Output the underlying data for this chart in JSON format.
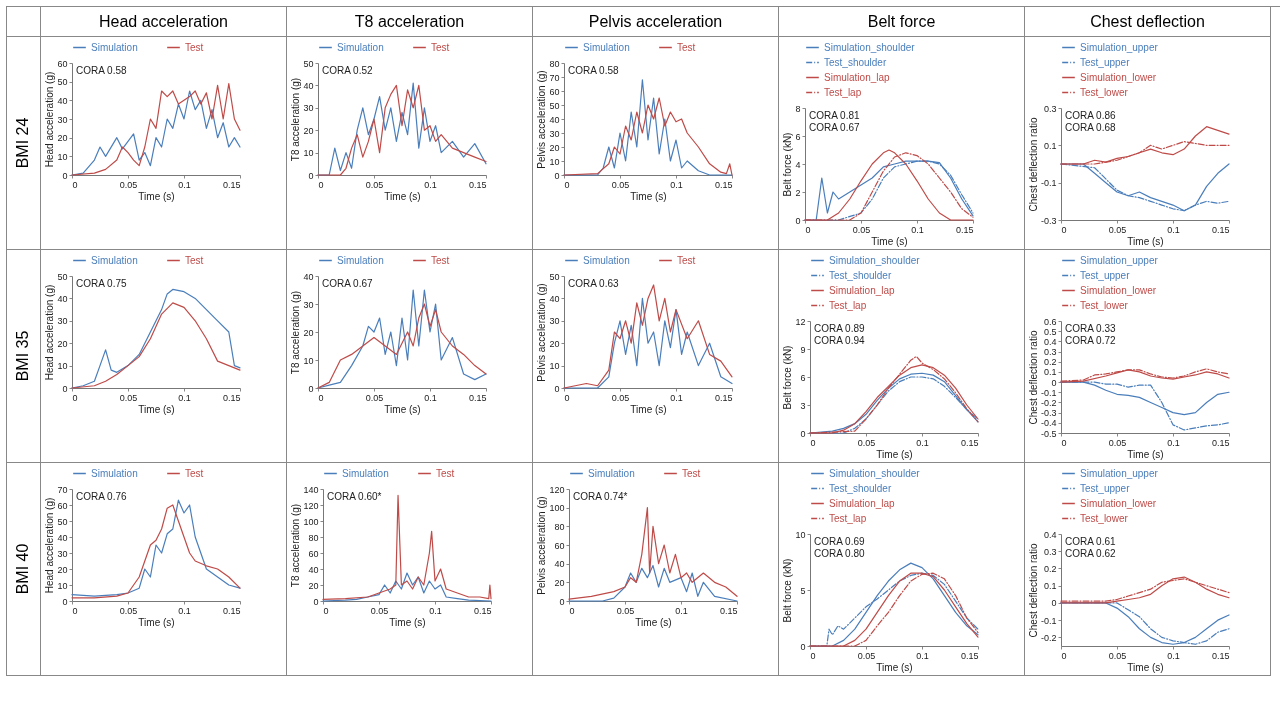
{
  "chart_data": [
    {
      "type": "line",
      "title": "Head acceleration",
      "subtitle": "BMI 24",
      "xlabel": "Time (s)",
      "ylabel": "Head acceleration (g)",
      "xlim": [
        0,
        0.15
      ],
      "xticks": [
        0,
        0.05,
        0.1,
        0.15
      ],
      "ylim": [
        0,
        60
      ],
      "yticks": [
        0,
        10,
        20,
        30,
        40,
        50,
        60
      ],
      "legend": "top",
      "annotations": [
        "CORA 0.58"
      ],
      "series": [
        {
          "name": "Simulation",
          "color": "#4a7ebb",
          "x": [
            0,
            0.01,
            0.02,
            0.025,
            0.03,
            0.04,
            0.045,
            0.05,
            0.055,
            0.06,
            0.065,
            0.07,
            0.075,
            0.08,
            0.085,
            0.09,
            0.095,
            0.1,
            0.105,
            0.11,
            0.115,
            0.12,
            0.125,
            0.13,
            0.135,
            0.14,
            0.145,
            0.15
          ],
          "values": [
            0,
            1,
            8,
            15,
            10,
            20,
            14,
            18,
            22,
            8,
            12,
            5,
            20,
            15,
            30,
            25,
            38,
            30,
            45,
            35,
            40,
            25,
            35,
            20,
            28,
            15,
            20,
            15
          ]
        },
        {
          "name": "Test",
          "color": "#be4b48",
          "x": [
            0,
            0.02,
            0.03,
            0.04,
            0.045,
            0.05,
            0.055,
            0.06,
            0.065,
            0.07,
            0.075,
            0.08,
            0.085,
            0.09,
            0.095,
            0.1,
            0.105,
            0.11,
            0.115,
            0.12,
            0.125,
            0.13,
            0.135,
            0.14,
            0.145,
            0.15
          ],
          "values": [
            0,
            1,
            3,
            8,
            15,
            12,
            8,
            5,
            15,
            30,
            25,
            45,
            42,
            45,
            38,
            40,
            42,
            45,
            38,
            44,
            30,
            48,
            30,
            49,
            30,
            24
          ]
        }
      ]
    },
    {
      "type": "line",
      "title": "T8 acceleration",
      "xlabel": "Time (s)",
      "ylabel": "T8 acceleration (g)",
      "xlim": [
        0,
        0.15
      ],
      "xticks": [
        0,
        0.05,
        0.1,
        0.15
      ],
      "ylim": [
        0,
        50
      ],
      "yticks": [
        0,
        10,
        20,
        30,
        40,
        50
      ],
      "legend": "top",
      "annotations": [
        "CORA 0.52"
      ],
      "series": [
        {
          "name": "Simulation",
          "color": "#4a7ebb",
          "x": [
            0,
            0.01,
            0.015,
            0.02,
            0.025,
            0.03,
            0.035,
            0.04,
            0.045,
            0.05,
            0.055,
            0.06,
            0.065,
            0.07,
            0.075,
            0.08,
            0.085,
            0.09,
            0.095,
            0.1,
            0.105,
            0.11,
            0.12,
            0.13,
            0.14,
            0.15
          ],
          "values": [
            0,
            0,
            12,
            2,
            10,
            3,
            20,
            30,
            18,
            25,
            35,
            20,
            30,
            15,
            28,
            18,
            41,
            12,
            30,
            15,
            22,
            10,
            15,
            8,
            14,
            5
          ]
        },
        {
          "name": "Test",
          "color": "#be4b48",
          "x": [
            0,
            0.02,
            0.025,
            0.03,
            0.035,
            0.04,
            0.045,
            0.05,
            0.055,
            0.06,
            0.065,
            0.07,
            0.075,
            0.08,
            0.085,
            0.09,
            0.095,
            0.1,
            0.105,
            0.11,
            0.12,
            0.13,
            0.14,
            0.15
          ],
          "values": [
            0,
            0,
            3,
            12,
            18,
            8,
            15,
            25,
            10,
            30,
            36,
            40,
            22,
            38,
            30,
            40,
            20,
            22,
            15,
            18,
            12,
            10,
            8,
            6
          ]
        }
      ]
    },
    {
      "type": "line",
      "title": "Pelvis acceleration",
      "xlabel": "Time (s)",
      "ylabel": "Pelvis acceleration (g)",
      "xlim": [
        0,
        0.15
      ],
      "xticks": [
        0,
        0.05,
        0.1,
        0.15
      ],
      "ylim": [
        0,
        80
      ],
      "yticks": [
        0,
        10,
        20,
        30,
        40,
        50,
        60,
        70,
        80
      ],
      "legend": "top",
      "annotations": [
        "CORA 0.58"
      ],
      "series": [
        {
          "name": "Simulation",
          "color": "#4a7ebb",
          "x": [
            0,
            0.03,
            0.035,
            0.04,
            0.045,
            0.05,
            0.055,
            0.06,
            0.065,
            0.07,
            0.075,
            0.08,
            0.085,
            0.09,
            0.095,
            0.1,
            0.105,
            0.11,
            0.12,
            0.13,
            0.15
          ],
          "values": [
            0,
            0,
            5,
            20,
            5,
            30,
            10,
            45,
            20,
            68,
            25,
            55,
            15,
            40,
            10,
            25,
            5,
            10,
            3,
            0,
            0
          ]
        },
        {
          "name": "Test",
          "color": "#be4b48",
          "x": [
            0,
            0.03,
            0.04,
            0.045,
            0.05,
            0.055,
            0.06,
            0.065,
            0.07,
            0.075,
            0.08,
            0.085,
            0.09,
            0.095,
            0.1,
            0.105,
            0.11,
            0.12,
            0.13,
            0.14,
            0.145,
            0.148,
            0.15
          ],
          "values": [
            0,
            1,
            8,
            20,
            15,
            35,
            25,
            45,
            30,
            50,
            40,
            55,
            35,
            45,
            38,
            40,
            30,
            20,
            8,
            2,
            1,
            8,
            0
          ]
        }
      ]
    },
    {
      "type": "line",
      "title": "Belt force",
      "xlabel": "Time (s)",
      "ylabel": "Belt force (kN)",
      "xlim": [
        0,
        0.15
      ],
      "xticks": [
        0,
        0.05,
        0.1,
        0.15
      ],
      "ylim": [
        0,
        8
      ],
      "yticks": [
        0,
        2,
        4,
        6,
        8
      ],
      "legend": "top",
      "annotations": [
        "CORA 0.81",
        "CORA 0.67"
      ],
      "series": [
        {
          "name": "Simulation_shoulder",
          "color": "#4a7ebb",
          "x": [
            0,
            0.01,
            0.015,
            0.02,
            0.025,
            0.03,
            0.04,
            0.05,
            0.06,
            0.07,
            0.08,
            0.09,
            0.1,
            0.11,
            0.12,
            0.13,
            0.14,
            0.15
          ],
          "values": [
            0,
            0,
            3,
            0.5,
            2,
            1.5,
            2,
            2.5,
            3,
            3.8,
            4,
            4.2,
            4.2,
            4.2,
            4.1,
            3,
            1.5,
            0.3
          ]
        },
        {
          "name": "Test_shoulder",
          "color": "#4a7ebb",
          "line_style": "dashed",
          "x": [
            0,
            0.03,
            0.05,
            0.06,
            0.07,
            0.08,
            0.09,
            0.1,
            0.11,
            0.12,
            0.13,
            0.14,
            0.15
          ],
          "values": [
            0,
            0,
            0.5,
            1.5,
            3,
            3.8,
            4,
            4.2,
            4.2,
            4,
            3.2,
            1.8,
            0.5
          ]
        },
        {
          "name": "Simulation_lap",
          "color": "#be4b48",
          "x": [
            0,
            0.02,
            0.03,
            0.04,
            0.05,
            0.06,
            0.07,
            0.075,
            0.08,
            0.09,
            0.1,
            0.11,
            0.12,
            0.13,
            0.15
          ],
          "values": [
            0,
            0,
            0.5,
            1.5,
            2.8,
            4,
            4.8,
            5,
            4.8,
            4,
            2.8,
            1.5,
            0.5,
            0,
            0
          ]
        },
        {
          "name": "Test_lap",
          "color": "#be4b48",
          "line_style": "dashed",
          "x": [
            0,
            0.04,
            0.05,
            0.06,
            0.07,
            0.08,
            0.09,
            0.1,
            0.11,
            0.12,
            0.13,
            0.14,
            0.15
          ],
          "values": [
            0,
            0,
            0.5,
            2,
            3.5,
            4.5,
            4.8,
            4.6,
            4,
            3,
            2,
            0.8,
            0.2
          ]
        }
      ]
    },
    {
      "type": "line",
      "title": "Chest deflection",
      "xlabel": "Time (s)",
      "ylabel": "Chest deflection ratio",
      "xlim": [
        0,
        0.15
      ],
      "xticks": [
        0,
        0.05,
        0.1,
        0.15
      ],
      "ylim": [
        -0.3,
        0.3
      ],
      "yticks": [
        -0.3,
        -0.1,
        0.1,
        0.3
      ],
      "legend": "top",
      "annotations": [
        "CORA 0.86",
        "CORA 0.68"
      ],
      "series": [
        {
          "name": "Simulation_upper",
          "color": "#4a7ebb",
          "x": [
            0,
            0.02,
            0.03,
            0.04,
            0.05,
            0.06,
            0.07,
            0.08,
            0.09,
            0.1,
            0.11,
            0.12,
            0.13,
            0.14,
            0.15
          ],
          "values": [
            0,
            0,
            -0.05,
            -0.1,
            -0.15,
            -0.17,
            -0.15,
            -0.18,
            -0.2,
            -0.22,
            -0.25,
            -0.22,
            -0.12,
            -0.05,
            0
          ]
        },
        {
          "name": "Test_upper",
          "color": "#4a7ebb",
          "line_style": "dashed",
          "x": [
            0,
            0.03,
            0.04,
            0.05,
            0.06,
            0.07,
            0.08,
            0.09,
            0.1,
            0.11,
            0.12,
            0.13,
            0.14,
            0.15
          ],
          "values": [
            0,
            -0.02,
            -0.08,
            -0.14,
            -0.17,
            -0.18,
            -0.2,
            -0.22,
            -0.24,
            -0.25,
            -0.22,
            -0.2,
            -0.21,
            -0.2
          ]
        },
        {
          "name": "Simulation_lower",
          "color": "#be4b48",
          "x": [
            0,
            0.02,
            0.03,
            0.04,
            0.05,
            0.06,
            0.07,
            0.08,
            0.09,
            0.1,
            0.11,
            0.12,
            0.13,
            0.14,
            0.15
          ],
          "values": [
            0,
            0,
            0.02,
            0.01,
            0.03,
            0.04,
            0.06,
            0.08,
            0.06,
            0.05,
            0.08,
            0.15,
            0.2,
            0.18,
            0.16
          ]
        },
        {
          "name": "Test_lower",
          "color": "#be4b48",
          "line_style": "dashed",
          "x": [
            0,
            0.03,
            0.04,
            0.05,
            0.06,
            0.07,
            0.08,
            0.09,
            0.1,
            0.11,
            0.12,
            0.13,
            0.14,
            0.15
          ],
          "values": [
            0,
            0,
            0.01,
            0.02,
            0.04,
            0.06,
            0.1,
            0.08,
            0.1,
            0.12,
            0.11,
            0.1,
            0.1,
            0.1
          ]
        }
      ]
    },
    {
      "type": "line",
      "subtitle": "BMI 35",
      "xlabel": "Time (s)",
      "ylabel": "Head acceleration (g)",
      "xlim": [
        0,
        0.15
      ],
      "xticks": [
        0,
        0.05,
        0.1,
        0.15
      ],
      "ylim": [
        0,
        50
      ],
      "yticks": [
        0,
        10,
        20,
        30,
        40,
        50
      ],
      "legend": "top",
      "annotations": [
        "CORA 0.75"
      ],
      "series": [
        {
          "name": "Simulation",
          "color": "#4a7ebb",
          "x": [
            0,
            0.01,
            0.02,
            0.025,
            0.03,
            0.035,
            0.04,
            0.05,
            0.06,
            0.07,
            0.08,
            0.085,
            0.09,
            0.1,
            0.11,
            0.12,
            0.13,
            0.14,
            0.145,
            0.15
          ],
          "values": [
            0,
            1,
            3,
            10,
            17,
            8,
            7,
            10,
            15,
            25,
            35,
            42,
            44,
            43,
            40,
            35,
            30,
            25,
            10,
            9
          ]
        },
        {
          "name": "Test",
          "color": "#be4b48",
          "x": [
            0,
            0.02,
            0.03,
            0.04,
            0.05,
            0.06,
            0.07,
            0.08,
            0.09,
            0.1,
            0.11,
            0.12,
            0.13,
            0.14,
            0.15
          ],
          "values": [
            0,
            1,
            3,
            6,
            10,
            14,
            22,
            33,
            38,
            36,
            30,
            22,
            12,
            10,
            8
          ]
        }
      ]
    },
    {
      "type": "line",
      "xlabel": "Time (s)",
      "ylabel": "T8 acceleration (g)",
      "xlim": [
        0,
        0.15
      ],
      "xticks": [
        0,
        0.05,
        0.1,
        0.15
      ],
      "ylim": [
        0,
        40
      ],
      "yticks": [
        0,
        10,
        20,
        30,
        40
      ],
      "legend": "top",
      "annotations": [
        "CORA 0.67"
      ],
      "series": [
        {
          "name": "Simulation",
          "color": "#4a7ebb",
          "x": [
            0,
            0.01,
            0.02,
            0.03,
            0.04,
            0.045,
            0.05,
            0.055,
            0.06,
            0.065,
            0.07,
            0.075,
            0.08,
            0.085,
            0.09,
            0.095,
            0.1,
            0.105,
            0.11,
            0.12,
            0.13,
            0.14,
            0.15
          ],
          "values": [
            0,
            1,
            2,
            8,
            15,
            22,
            20,
            25,
            12,
            20,
            8,
            25,
            10,
            35,
            15,
            35,
            20,
            30,
            10,
            18,
            5,
            3,
            5
          ]
        },
        {
          "name": "Test",
          "color": "#be4b48",
          "x": [
            0,
            0.01,
            0.02,
            0.03,
            0.04,
            0.05,
            0.06,
            0.07,
            0.08,
            0.085,
            0.09,
            0.095,
            0.1,
            0.105,
            0.11,
            0.12,
            0.13,
            0.14,
            0.15
          ],
          "values": [
            0,
            2,
            10,
            12,
            15,
            18,
            15,
            12,
            20,
            15,
            25,
            30,
            22,
            28,
            20,
            15,
            12,
            8,
            5
          ]
        }
      ]
    },
    {
      "type": "line",
      "xlabel": "Time (s)",
      "ylabel": "Pelvis acceleration (g)",
      "xlim": [
        0,
        0.15
      ],
      "xticks": [
        0,
        0.05,
        0.1,
        0.15
      ],
      "ylim": [
        0,
        50
      ],
      "yticks": [
        0,
        10,
        20,
        30,
        40,
        50
      ],
      "legend": "top",
      "annotations": [
        "CORA 0.63"
      ],
      "series": [
        {
          "name": "Simulation",
          "color": "#4a7ebb",
          "x": [
            0,
            0.03,
            0.04,
            0.045,
            0.05,
            0.055,
            0.06,
            0.065,
            0.07,
            0.075,
            0.08,
            0.085,
            0.09,
            0.095,
            0.1,
            0.105,
            0.11,
            0.12,
            0.13,
            0.14,
            0.15
          ],
          "values": [
            0,
            0,
            5,
            20,
            30,
            15,
            28,
            10,
            40,
            20,
            25,
            10,
            30,
            18,
            35,
            15,
            25,
            10,
            20,
            5,
            2
          ]
        },
        {
          "name": "Test",
          "color": "#be4b48",
          "x": [
            0,
            0.02,
            0.03,
            0.04,
            0.045,
            0.05,
            0.055,
            0.06,
            0.065,
            0.07,
            0.075,
            0.08,
            0.085,
            0.09,
            0.095,
            0.1,
            0.11,
            0.12,
            0.13,
            0.14,
            0.15
          ],
          "values": [
            0,
            2,
            1,
            8,
            25,
            22,
            30,
            20,
            38,
            28,
            40,
            46,
            30,
            40,
            25,
            35,
            22,
            30,
            15,
            12,
            5
          ]
        }
      ]
    },
    {
      "type": "line",
      "xlabel": "Time (s)",
      "ylabel": "Belt force (kN)",
      "xlim": [
        0,
        0.15
      ],
      "xticks": [
        0,
        0.05,
        0.1,
        0.15
      ],
      "ylim": [
        0,
        12
      ],
      "yticks": [
        0,
        3,
        6,
        9,
        12
      ],
      "legend": "top",
      "annotations": [
        "CORA 0.89",
        "CORA 0.94"
      ],
      "series": [
        {
          "name": "Simulation_shoulder",
          "color": "#4a7ebb",
          "x": [
            0,
            0.02,
            0.03,
            0.04,
            0.05,
            0.06,
            0.07,
            0.08,
            0.09,
            0.1,
            0.11,
            0.12,
            0.13,
            0.14,
            0.15
          ],
          "values": [
            0,
            0.2,
            0.5,
            1,
            2,
            3.5,
            4.8,
            5.8,
            6.3,
            6.4,
            6.2,
            5.5,
            4,
            2.5,
            1.2
          ]
        },
        {
          "name": "Test_shoulder",
          "color": "#4a7ebb",
          "line_style": "dashed",
          "x": [
            0,
            0.03,
            0.04,
            0.05,
            0.06,
            0.07,
            0.08,
            0.09,
            0.1,
            0.11,
            0.12,
            0.13,
            0.14,
            0.15
          ],
          "values": [
            0,
            0,
            0.5,
            1.5,
            3,
            4.5,
            5.5,
            6,
            6,
            5.8,
            5,
            3.8,
            2.5,
            1.5
          ]
        },
        {
          "name": "Simulation_lap",
          "color": "#be4b48",
          "x": [
            0,
            0.02,
            0.03,
            0.04,
            0.05,
            0.06,
            0.07,
            0.08,
            0.09,
            0.1,
            0.11,
            0.12,
            0.13,
            0.14,
            0.15
          ],
          "values": [
            0,
            0,
            0.3,
            1,
            2.3,
            3.8,
            5,
            6.2,
            7,
            7.3,
            7,
            6.2,
            4.8,
            3,
            1.5
          ]
        },
        {
          "name": "Test_lap",
          "color": "#be4b48",
          "line_style": "dashed",
          "x": [
            0,
            0.04,
            0.05,
            0.06,
            0.07,
            0.08,
            0.09,
            0.095,
            0.1,
            0.11,
            0.12,
            0.13,
            0.14,
            0.15
          ],
          "values": [
            0,
            0.2,
            1.5,
            3,
            4.8,
            6.3,
            7.8,
            8.2,
            7.5,
            6.8,
            5.8,
            4.3,
            2.6,
            1.2
          ]
        }
      ]
    },
    {
      "type": "line",
      "xlabel": "Time (s)",
      "ylabel": "Chest deflection ratio",
      "xlim": [
        0,
        0.15
      ],
      "xticks": [
        0,
        0.05,
        0.1,
        0.15
      ],
      "ylim": [
        -0.5,
        0.6
      ],
      "yticks": [
        -0.5,
        -0.4,
        -0.3,
        -0.2,
        -0.1,
        0,
        0.1,
        0.2,
        0.3,
        0.4,
        0.5,
        0.6
      ],
      "legend": "top",
      "annotations": [
        "CORA 0.33",
        "CORA 0.72"
      ],
      "series": [
        {
          "name": "Simulation_upper",
          "color": "#4a7ebb",
          "x": [
            0,
            0.02,
            0.03,
            0.04,
            0.05,
            0.06,
            0.07,
            0.08,
            0.09,
            0.1,
            0.11,
            0.12,
            0.13,
            0.14,
            0.15
          ],
          "values": [
            0,
            0,
            -0.03,
            -0.08,
            -0.12,
            -0.13,
            -0.15,
            -0.2,
            -0.25,
            -0.3,
            -0.32,
            -0.3,
            -0.2,
            -0.12,
            -0.1
          ]
        },
        {
          "name": "Test_upper",
          "color": "#4a7ebb",
          "line_style": "dashed",
          "x": [
            0,
            0.03,
            0.04,
            0.05,
            0.06,
            0.07,
            0.08,
            0.09,
            0.1,
            0.11,
            0.12,
            0.13,
            0.14,
            0.15
          ],
          "values": [
            0,
            0,
            -0.02,
            -0.02,
            -0.05,
            -0.03,
            -0.03,
            -0.2,
            -0.42,
            -0.47,
            -0.45,
            -0.43,
            -0.42,
            -0.4
          ]
        },
        {
          "name": "Simulation_lower",
          "color": "#be4b48",
          "x": [
            0,
            0.02,
            0.04,
            0.05,
            0.06,
            0.07,
            0.08,
            0.09,
            0.1,
            0.11,
            0.12,
            0.13,
            0.14,
            0.15
          ],
          "values": [
            0,
            0.01,
            0.06,
            0.09,
            0.12,
            0.1,
            0.06,
            0.04,
            0.03,
            0.05,
            0.07,
            0.1,
            0.08,
            0.04
          ]
        },
        {
          "name": "Test_lower",
          "color": "#be4b48",
          "line_style": "dashed",
          "x": [
            0,
            0.02,
            0.03,
            0.04,
            0.05,
            0.06,
            0.07,
            0.08,
            0.09,
            0.1,
            0.11,
            0.12,
            0.13,
            0.14,
            0.15
          ],
          "values": [
            0.01,
            0.02,
            0.07,
            0.08,
            0.1,
            0.12,
            0.12,
            0.08,
            0.05,
            0.04,
            0.06,
            0.1,
            0.13,
            0.1,
            0.08
          ]
        }
      ]
    },
    {
      "type": "line",
      "subtitle": "BMI 40",
      "xlabel": "Time (s)",
      "ylabel": "Head acceleration (g)",
      "xlim": [
        0,
        0.15
      ],
      "xticks": [
        0,
        0.05,
        0.1,
        0.15
      ],
      "ylim": [
        0,
        70
      ],
      "yticks": [
        0,
        10,
        20,
        30,
        40,
        50,
        60,
        70
      ],
      "legend": "top",
      "annotations": [
        "CORA 0.76"
      ],
      "series": [
        {
          "name": "Simulation",
          "color": "#4a7ebb",
          "x": [
            0,
            0.02,
            0.04,
            0.05,
            0.06,
            0.065,
            0.07,
            0.075,
            0.08,
            0.085,
            0.09,
            0.095,
            0.1,
            0.105,
            0.11,
            0.115,
            0.12,
            0.13,
            0.14,
            0.15
          ],
          "values": [
            4,
            3,
            4,
            5,
            8,
            20,
            15,
            35,
            30,
            42,
            45,
            63,
            55,
            60,
            40,
            30,
            20,
            15,
            10,
            8
          ]
        },
        {
          "name": "Test",
          "color": "#be4b48",
          "x": [
            0,
            0.02,
            0.04,
            0.05,
            0.06,
            0.065,
            0.07,
            0.075,
            0.08,
            0.085,
            0.09,
            0.095,
            0.1,
            0.105,
            0.11,
            0.12,
            0.13,
            0.14,
            0.15
          ],
          "values": [
            2,
            2,
            3,
            5,
            15,
            25,
            35,
            38,
            45,
            58,
            60,
            50,
            40,
            30,
            25,
            22,
            20,
            15,
            8
          ]
        }
      ]
    },
    {
      "type": "line",
      "xlabel": "Time (s)",
      "ylabel": "T8 acceleration (g)",
      "xlim": [
        0,
        0.15
      ],
      "xticks": [
        0,
        0.05,
        0.1,
        0.15
      ],
      "ylim": [
        0,
        140
      ],
      "yticks": [
        0,
        20,
        40,
        60,
        80,
        100,
        120,
        140
      ],
      "legend": "top",
      "annotations": [
        "CORA 0.60*"
      ],
      "series": [
        {
          "name": "Simulation",
          "color": "#4a7ebb",
          "x": [
            0,
            0.02,
            0.03,
            0.04,
            0.05,
            0.055,
            0.06,
            0.065,
            0.07,
            0.075,
            0.08,
            0.085,
            0.09,
            0.095,
            0.1,
            0.105,
            0.11,
            0.12,
            0.13,
            0.15
          ],
          "values": [
            0,
            1,
            2,
            5,
            8,
            20,
            10,
            25,
            15,
            35,
            20,
            30,
            10,
            25,
            15,
            20,
            5,
            3,
            1,
            0
          ]
        },
        {
          "name": "Test",
          "color": "#be4b48",
          "x": [
            0,
            0.02,
            0.04,
            0.05,
            0.06,
            0.065,
            0.067,
            0.07,
            0.075,
            0.08,
            0.085,
            0.09,
            0.095,
            0.097,
            0.1,
            0.105,
            0.11,
            0.12,
            0.13,
            0.14,
            0.148,
            0.149,
            0.15
          ],
          "values": [
            2,
            3,
            5,
            10,
            15,
            20,
            132,
            20,
            25,
            15,
            30,
            20,
            60,
            87,
            25,
            40,
            15,
            10,
            5,
            5,
            3,
            20,
            3
          ]
        }
      ]
    },
    {
      "type": "line",
      "xlabel": "Time (s)",
      "ylabel": "Pelvis acceleration (g)",
      "xlim": [
        0,
        0.15
      ],
      "xticks": [
        0,
        0.05,
        0.1,
        0.15
      ],
      "ylim": [
        0,
        120
      ],
      "yticks": [
        0,
        20,
        40,
        60,
        80,
        100,
        120
      ],
      "legend": "top",
      "annotations": [
        "CORA 0.74*"
      ],
      "series": [
        {
          "name": "Simulation",
          "color": "#4a7ebb",
          "x": [
            0,
            0.03,
            0.04,
            0.05,
            0.055,
            0.06,
            0.065,
            0.07,
            0.075,
            0.08,
            0.085,
            0.09,
            0.1,
            0.105,
            0.11,
            0.115,
            0.12,
            0.13,
            0.15
          ],
          "values": [
            0,
            0,
            3,
            15,
            30,
            20,
            35,
            25,
            38,
            15,
            35,
            20,
            25,
            10,
            30,
            5,
            20,
            5,
            0
          ]
        },
        {
          "name": "Test",
          "color": "#be4b48",
          "x": [
            0,
            0.02,
            0.04,
            0.05,
            0.055,
            0.06,
            0.065,
            0.07,
            0.072,
            0.075,
            0.08,
            0.085,
            0.09,
            0.095,
            0.1,
            0.105,
            0.11,
            0.12,
            0.13,
            0.14,
            0.15
          ],
          "values": [
            2,
            5,
            10,
            15,
            25,
            20,
            50,
            100,
            30,
            80,
            40,
            60,
            30,
            50,
            25,
            30,
            20,
            30,
            20,
            15,
            5
          ]
        }
      ]
    },
    {
      "type": "line",
      "xlabel": "Time (s)",
      "ylabel": "Belt force (kN)",
      "xlim": [
        0,
        0.15
      ],
      "xticks": [
        0,
        0.05,
        0.1,
        0.15
      ],
      "ylim": [
        0,
        10
      ],
      "yticks": [
        0,
        5,
        10
      ],
      "legend": "top",
      "annotations": [
        "CORA 0.69",
        "CORA 0.80"
      ],
      "series": [
        {
          "name": "Simulation_shoulder",
          "color": "#4a7ebb",
          "x": [
            0,
            0.02,
            0.03,
            0.04,
            0.05,
            0.06,
            0.07,
            0.08,
            0.09,
            0.1,
            0.11,
            0.12,
            0.13,
            0.14,
            0.15
          ],
          "values": [
            0,
            0,
            0.5,
            1.5,
            3,
            4.5,
            5.8,
            6.8,
            7.4,
            7,
            6,
            4.5,
            3,
            1.8,
            1
          ]
        },
        {
          "name": "Test_shoulder",
          "color": "#4a7ebb",
          "line_style": "dashed",
          "x": [
            0,
            0.015,
            0.017,
            0.02,
            0.025,
            0.03,
            0.04,
            0.05,
            0.06,
            0.07,
            0.08,
            0.09,
            0.1,
            0.11,
            0.12,
            0.13,
            0.14,
            0.15
          ],
          "values": [
            0,
            0,
            1.5,
            1,
            1.8,
            1.5,
            2.5,
            3.5,
            4.2,
            5,
            5.8,
            6.3,
            6.5,
            6.3,
            5.5,
            4,
            2.5,
            1.5
          ]
        },
        {
          "name": "Simulation_lap",
          "color": "#be4b48",
          "x": [
            0,
            0.03,
            0.04,
            0.05,
            0.06,
            0.07,
            0.08,
            0.09,
            0.1,
            0.11,
            0.12,
            0.13,
            0.14,
            0.15
          ],
          "values": [
            0,
            0,
            0.5,
            1.5,
            3,
            4.5,
            5.8,
            6.5,
            6.5,
            6.2,
            5,
            3.5,
            2,
            0.8
          ]
        },
        {
          "name": "Test_lap",
          "color": "#be4b48",
          "line_style": "dashed",
          "x": [
            0,
            0.04,
            0.05,
            0.06,
            0.07,
            0.08,
            0.09,
            0.1,
            0.11,
            0.12,
            0.13,
            0.14,
            0.15
          ],
          "values": [
            0,
            0,
            0.5,
            1.8,
            3,
            4.5,
            5.8,
            6.4,
            6.5,
            6,
            4.5,
            2.5,
            1.2
          ]
        }
      ]
    },
    {
      "type": "line",
      "xlabel": "Time (s)",
      "ylabel": "Chest deflection ratio",
      "xlim": [
        0,
        0.15
      ],
      "xticks": [
        0,
        0.05,
        0.1,
        0.15
      ],
      "ylim": [
        -0.25,
        0.4
      ],
      "yticks": [
        -0.2,
        -0.1,
        0,
        0.1,
        0.2,
        0.3,
        0.4
      ],
      "legend": "top",
      "annotations": [
        "CORA 0.61",
        "CORA 0.62"
      ],
      "series": [
        {
          "name": "Simulation_upper",
          "color": "#4a7ebb",
          "x": [
            0,
            0.04,
            0.05,
            0.06,
            0.07,
            0.08,
            0.09,
            0.1,
            0.11,
            0.12,
            0.13,
            0.14,
            0.15
          ],
          "values": [
            0,
            0,
            -0.03,
            -0.08,
            -0.15,
            -0.2,
            -0.23,
            -0.24,
            -0.23,
            -0.2,
            -0.15,
            -0.1,
            -0.07
          ]
        },
        {
          "name": "Test_upper",
          "color": "#4a7ebb",
          "line_style": "dashed",
          "x": [
            0,
            0.05,
            0.06,
            0.07,
            0.08,
            0.09,
            0.1,
            0.11,
            0.12,
            0.13,
            0.14,
            0.15
          ],
          "values": [
            0,
            0,
            -0.04,
            -0.08,
            -0.15,
            -0.2,
            -0.22,
            -0.23,
            -0.24,
            -0.22,
            -0.17,
            -0.15
          ]
        },
        {
          "name": "Simulation_lower",
          "color": "#be4b48",
          "x": [
            0,
            0.04,
            0.05,
            0.06,
            0.07,
            0.08,
            0.09,
            0.1,
            0.11,
            0.12,
            0.13,
            0.14,
            0.15
          ],
          "values": [
            0,
            0,
            0.01,
            0.02,
            0.03,
            0.05,
            0.1,
            0.14,
            0.15,
            0.12,
            0.08,
            0.05,
            0.03
          ]
        },
        {
          "name": "Test_lower",
          "color": "#be4b48",
          "line_style": "dashed",
          "x": [
            0,
            0.04,
            0.05,
            0.06,
            0.07,
            0.08,
            0.09,
            0.1,
            0.11,
            0.12,
            0.13,
            0.14,
            0.15
          ],
          "values": [
            0.01,
            0.01,
            0.02,
            0.04,
            0.06,
            0.08,
            0.12,
            0.13,
            0.14,
            0.12,
            0.1,
            0.08,
            0.06
          ]
        }
      ]
    }
  ]
}
